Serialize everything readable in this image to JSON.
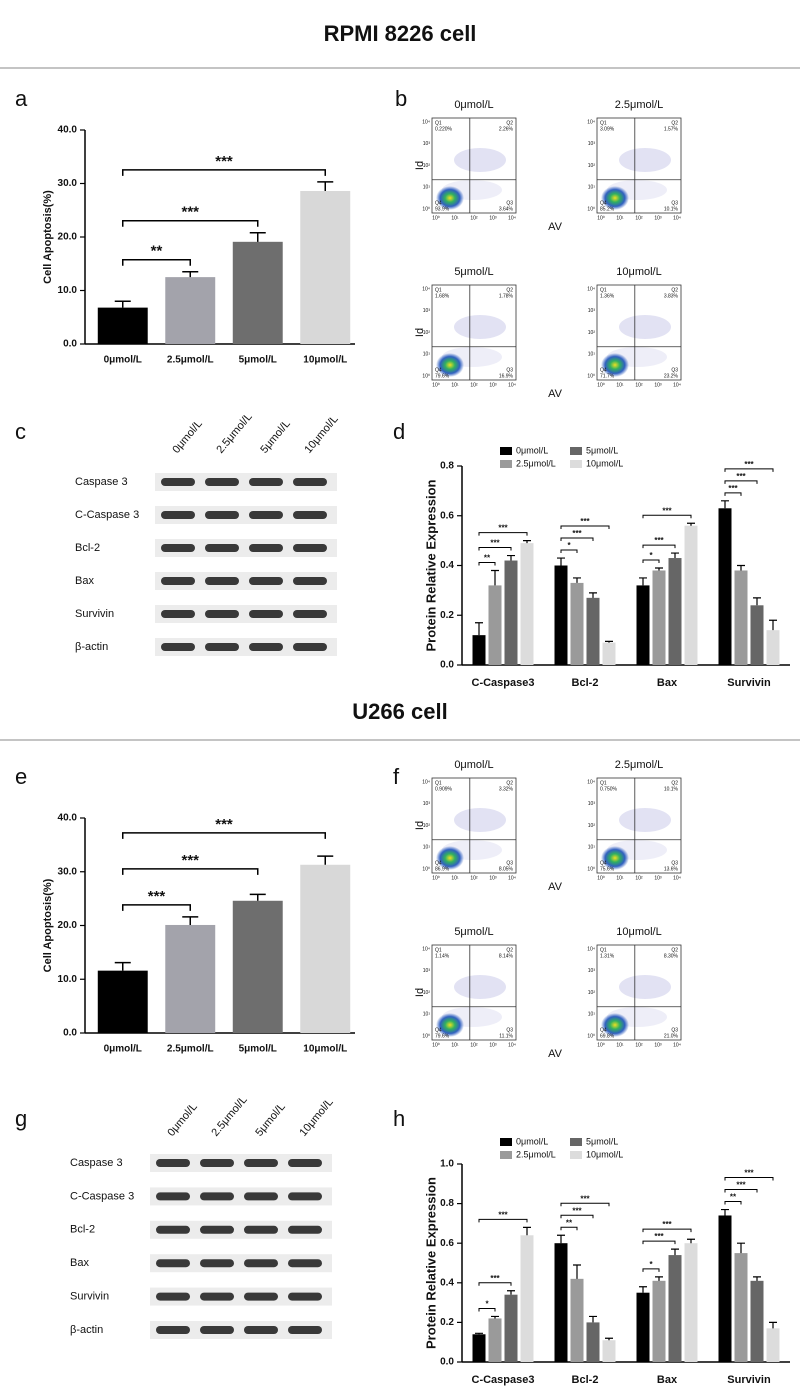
{
  "section_titles": [
    "RPMI 8226 cell",
    "U266 cell"
  ],
  "panel_letters": [
    "a",
    "b",
    "c",
    "d",
    "e",
    "f",
    "g",
    "h"
  ],
  "chart_data": [
    {
      "type": "bar",
      "ylabel": "Cell Apoptosis(%)",
      "categories": [
        "0μmol/L",
        "2.5μmol/L",
        "5μmol/L",
        "10μmol/L"
      ],
      "values": [
        6.8,
        12.5,
        19.1,
        28.6
      ],
      "errors": [
        1.2,
        1.0,
        1.7,
        1.7
      ],
      "colors": [
        "#000000",
        "#a3a3ab",
        "#6e6e6e",
        "#d8d8d8"
      ],
      "significance": [
        null,
        "**",
        "***",
        "***"
      ],
      "ylim": [
        0,
        40
      ],
      "yticks": [
        {
          "value": 0,
          "label": "0.0"
        },
        {
          "value": 10,
          "label": "10.0"
        },
        {
          "value": 20,
          "label": "20.0"
        },
        {
          "value": 30,
          "label": "30.0"
        },
        {
          "value": 40,
          "label": "40.0"
        }
      ]
    },
    {
      "type": "grouped_bar",
      "ylabel": "Protein Relative Expression",
      "categories": [
        "C-Caspase3",
        "Bcl-2",
        "Bax",
        "Survivin"
      ],
      "series": [
        {
          "name": "0μmol/L",
          "color": "#000000",
          "values": [
            0.12,
            0.4,
            0.32,
            0.63
          ],
          "errors": [
            0.05,
            0.03,
            0.03,
            0.03
          ]
        },
        {
          "name": "2.5μmol/L",
          "color": "#9a9a9a",
          "values": [
            0.32,
            0.33,
            0.38,
            0.38
          ],
          "errors": [
            0.06,
            0.02,
            0.01,
            0.02
          ],
          "significance": [
            "**",
            "*",
            "*",
            "***"
          ]
        },
        {
          "name": "5μmol/L",
          "color": "#666666",
          "values": [
            0.42,
            0.27,
            0.43,
            0.24
          ],
          "errors": [
            0.02,
            0.02,
            0.02,
            0.03
          ],
          "significance": [
            "***",
            "***",
            "***",
            "***"
          ]
        },
        {
          "name": "10μmol/L",
          "color": "#dcdcdc",
          "values": [
            0.49,
            0.09,
            0.56,
            0.14
          ],
          "errors": [
            0.01,
            0.005,
            0.01,
            0.04
          ],
          "significance": [
            "***",
            "***",
            "***",
            "***"
          ]
        }
      ],
      "ylim": [
        0,
        0.8
      ],
      "yticks": [
        {
          "value": 0,
          "label": "0.0"
        },
        {
          "value": 0.2,
          "label": "0.2"
        },
        {
          "value": 0.4,
          "label": "0.4"
        },
        {
          "value": 0.6,
          "label": "0.6"
        },
        {
          "value": 0.8,
          "label": "0.8"
        }
      ]
    },
    {
      "type": "bar",
      "ylabel": "Cell Apoptosis(%)",
      "categories": [
        "0μmol/L",
        "2.5μmol/L",
        "5μmol/L",
        "10μmol/L"
      ],
      "values": [
        11.6,
        20.1,
        24.6,
        31.3
      ],
      "errors": [
        1.5,
        1.5,
        1.2,
        1.6
      ],
      "colors": [
        "#000000",
        "#a3a3ab",
        "#6e6e6e",
        "#d8d8d8"
      ],
      "significance": [
        null,
        "***",
        "***",
        "***"
      ],
      "ylim": [
        0,
        40
      ],
      "yticks": [
        {
          "value": 0,
          "label": "0.0"
        },
        {
          "value": 10,
          "label": "10.0"
        },
        {
          "value": 20,
          "label": "20.0"
        },
        {
          "value": 30,
          "label": "30.0"
        },
        {
          "value": 40,
          "label": "40.0"
        }
      ]
    },
    {
      "type": "grouped_bar",
      "ylabel": "Protein Relative Expression",
      "categories": [
        "C-Caspase3",
        "Bcl-2",
        "Bax",
        "Survivin"
      ],
      "series": [
        {
          "name": "0μmol/L",
          "color": "#000000",
          "values": [
            0.14,
            0.6,
            0.35,
            0.74
          ],
          "errors": [
            0.005,
            0.04,
            0.03,
            0.03
          ]
        },
        {
          "name": "2.5μmol/L",
          "color": "#9a9a9a",
          "values": [
            0.22,
            0.42,
            0.41,
            0.55
          ],
          "errors": [
            0.01,
            0.07,
            0.02,
            0.05
          ],
          "significance": [
            "*",
            "**",
            "*",
            "**"
          ]
        },
        {
          "name": "5μmol/L",
          "color": "#666666",
          "values": [
            0.34,
            0.2,
            0.54,
            0.41
          ],
          "errors": [
            0.02,
            0.03,
            0.03,
            0.02
          ],
          "significance": [
            "***",
            "***",
            "***",
            "***"
          ]
        },
        {
          "name": "10μmol/L",
          "color": "#dcdcdc",
          "values": [
            0.64,
            0.11,
            0.6,
            0.17
          ],
          "errors": [
            0.04,
            0.01,
            0.02,
            0.03
          ],
          "significance": [
            "***",
            "***",
            "***",
            "***"
          ]
        }
      ],
      "ylim": [
        0,
        1.0
      ],
      "yticks": [
        {
          "value": 0,
          "label": "0.0"
        },
        {
          "value": 0.2,
          "label": "0.2"
        },
        {
          "value": 0.4,
          "label": "0.4"
        },
        {
          "value": 0.6,
          "label": "0.6"
        },
        {
          "value": 0.8,
          "label": "0.8"
        },
        {
          "value": 1.0,
          "label": "1.0"
        }
      ]
    }
  ],
  "flow_cytometry": [
    {
      "x_label": "AV",
      "y_label": "Id",
      "decade_labels": [
        "10⁰",
        "10¹",
        "10²",
        "10³",
        "10⁴"
      ],
      "plots": [
        {
          "title": "0μmol/L",
          "quadrants": [
            {
              "name": "Q1",
              "percent": "0.220%"
            },
            {
              "name": "Q2",
              "percent": "2.26%"
            },
            {
              "name": "Q3",
              "percent": "3.64%"
            },
            {
              "name": "Q4",
              "percent": "93.9%"
            }
          ]
        },
        {
          "title": "2.5μmol/L",
          "quadrants": [
            {
              "name": "Q1",
              "percent": "3.09%"
            },
            {
              "name": "Q2",
              "percent": "1.57%"
            },
            {
              "name": "Q3",
              "percent": "10.1%"
            },
            {
              "name": "Q4",
              "percent": "85.2%"
            }
          ]
        },
        {
          "title": "5μmol/L",
          "quadrants": [
            {
              "name": "Q1",
              "percent": "1.68%"
            },
            {
              "name": "Q2",
              "percent": "1.78%"
            },
            {
              "name": "Q3",
              "percent": "16.9%"
            },
            {
              "name": "Q4",
              "percent": "79.6%"
            }
          ]
        },
        {
          "title": "10μmol/L",
          "quadrants": [
            {
              "name": "Q1",
              "percent": "1.36%"
            },
            {
              "name": "Q2",
              "percent": "3.83%"
            },
            {
              "name": "Q3",
              "percent": "23.2%"
            },
            {
              "name": "Q4",
              "percent": "71.7%"
            }
          ]
        }
      ]
    },
    {
      "x_label": "AV",
      "y_label": "Id",
      "decade_labels": [
        "10⁰",
        "10¹",
        "10²",
        "10³",
        "10⁴"
      ],
      "plots": [
        {
          "title": "0μmol/L",
          "quadrants": [
            {
              "name": "Q1",
              "percent": "0.909%"
            },
            {
              "name": "Q2",
              "percent": "3.32%"
            },
            {
              "name": "Q3",
              "percent": "8.05%"
            },
            {
              "name": "Q4",
              "percent": "86.9%"
            }
          ]
        },
        {
          "title": "2.5μmol/L",
          "quadrants": [
            {
              "name": "Q1",
              "percent": "0.750%"
            },
            {
              "name": "Q2",
              "percent": "10.1%"
            },
            {
              "name": "Q3",
              "percent": "13.6%"
            },
            {
              "name": "Q4",
              "percent": "75.6%"
            }
          ]
        },
        {
          "title": "5μmol/L",
          "quadrants": [
            {
              "name": "Q1",
              "percent": "1.14%"
            },
            {
              "name": "Q2",
              "percent": "8.14%"
            },
            {
              "name": "Q3",
              "percent": "11.1%"
            },
            {
              "name": "Q4",
              "percent": "79.6%"
            }
          ]
        },
        {
          "title": "10μmol/L",
          "quadrants": [
            {
              "name": "Q1",
              "percent": "1.31%"
            },
            {
              "name": "Q2",
              "percent": "8.30%"
            },
            {
              "name": "Q3",
              "percent": "21.0%"
            },
            {
              "name": "Q4",
              "percent": "69.8%"
            }
          ]
        }
      ]
    }
  ],
  "blots": [
    {
      "lanes": [
        "0μmol/L",
        "2.5μmol/L",
        "5μmol/L",
        "10μmol/L"
      ],
      "rows": [
        "Caspase 3",
        "C-Caspase 3",
        "Bcl-2",
        "Bax",
        "Survivin",
        "β-actin"
      ]
    },
    {
      "lanes": [
        "0μmol/L",
        "2.5μmol/L",
        "5μmol/L",
        "10μmol/L"
      ],
      "rows": [
        "Caspase 3",
        "C-Caspase 3",
        "Bcl-2",
        "Bax",
        "Survivin",
        "β-actin"
      ]
    }
  ]
}
